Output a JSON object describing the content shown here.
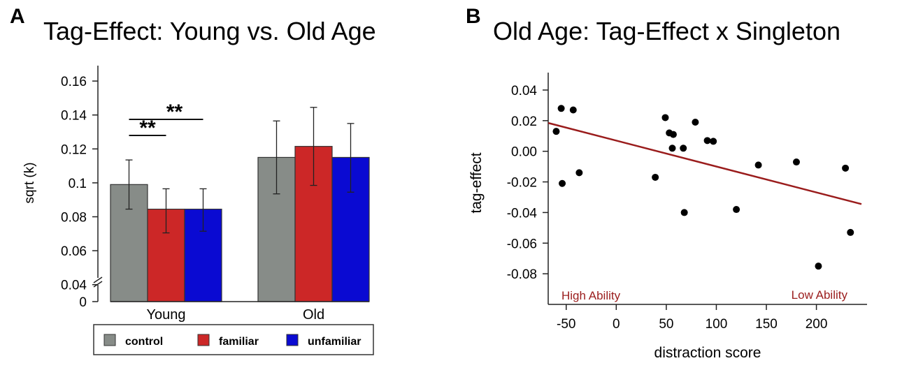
{
  "panels": [
    {
      "letter": "A",
      "title": "Tag-Effect: Young vs. Old Age"
    },
    {
      "letter": "B",
      "title": "Old Age: Tag-Effect x Singleton"
    }
  ],
  "chart_data": [
    {
      "type": "bar",
      "title": "Tag-Effect: Young vs. Old Age",
      "xlabel": "",
      "ylabel": "sqrt (k)",
      "categories": [
        "Young",
        "Old"
      ],
      "ylim": [
        0.03,
        0.16
      ],
      "axis_break": true,
      "yticks": [
        "0.16",
        "0.14",
        "0.12",
        "0.1",
        "0.08",
        "0.06",
        "0.04",
        "0"
      ],
      "series": [
        {
          "name": "control",
          "color": "#878c88",
          "values": [
            0.099,
            0.115
          ],
          "errors": [
            [
              0.0845,
              0.1135
            ],
            [
              0.0935,
              0.1365
            ]
          ]
        },
        {
          "name": "familiar",
          "color": "#cc2727",
          "values": [
            0.0845,
            0.1215
          ],
          "errors": [
            [
              0.0705,
              0.0965
            ],
            [
              0.0985,
              0.1445
            ]
          ]
        },
        {
          "name": "unfamiliar",
          "color": "#0a0ad2",
          "values": [
            0.0845,
            0.115
          ],
          "errors": [
            [
              0.0715,
              0.0965
            ],
            [
              0.0945,
              0.135
            ]
          ]
        }
      ],
      "significance": [
        {
          "label": "**",
          "category": "Young",
          "from": "control",
          "to": "unfamiliar"
        },
        {
          "label": "**",
          "category": "Young",
          "from": "control",
          "to": "familiar"
        }
      ],
      "legend": {
        "position": "bottom",
        "items": [
          "control",
          "familiar",
          "unfamiliar"
        ]
      }
    },
    {
      "type": "scatter",
      "title": "Old Age: Tag-Effect x Singleton",
      "xlabel": "distraction score",
      "ylabel": "tag-effect",
      "xlim": [
        -68,
        245
      ],
      "ylim": [
        -0.1,
        0.045
      ],
      "xticks": [
        -50,
        0,
        50,
        100,
        150,
        200
      ],
      "xtick_labels": [
        "-50",
        "0",
        "50",
        "100",
        "150",
        "200"
      ],
      "yticks": [
        0.04,
        0.02,
        0.0,
        -0.02,
        -0.04,
        -0.06,
        -0.08
      ],
      "ytick_labels": [
        "0.04",
        "0.02",
        "0.00",
        "-0.02",
        "-0.04",
        "-0.06",
        "-0.08"
      ],
      "points": [
        {
          "x": -60,
          "y": 0.013
        },
        {
          "x": -55,
          "y": 0.028
        },
        {
          "x": -54,
          "y": -0.021
        },
        {
          "x": -43,
          "y": 0.027
        },
        {
          "x": -37,
          "y": -0.014
        },
        {
          "x": 39,
          "y": -0.017
        },
        {
          "x": 49,
          "y": 0.022
        },
        {
          "x": 53,
          "y": 0.012
        },
        {
          "x": 56,
          "y": 0.002
        },
        {
          "x": 57,
          "y": 0.011
        },
        {
          "x": 67,
          "y": 0.002
        },
        {
          "x": 68,
          "y": -0.04
        },
        {
          "x": 79,
          "y": 0.019
        },
        {
          "x": 91,
          "y": 0.007
        },
        {
          "x": 97,
          "y": 0.0065
        },
        {
          "x": 120,
          "y": -0.038
        },
        {
          "x": 142,
          "y": -0.009
        },
        {
          "x": 180,
          "y": -0.007
        },
        {
          "x": 202,
          "y": -0.075
        },
        {
          "x": 229,
          "y": -0.011
        },
        {
          "x": 234,
          "y": -0.053
        }
      ],
      "fit_line": {
        "color": "#9a1c1c",
        "x": [
          -68,
          245
        ],
        "y": [
          0.0185,
          -0.0345
        ]
      },
      "annotations": [
        {
          "text": "High Ability",
          "color": "#9a1c1c",
          "anchor": "bottom-left"
        },
        {
          "text": "Low Ability",
          "color": "#9a1c1c",
          "anchor": "bottom-right"
        }
      ]
    }
  ]
}
